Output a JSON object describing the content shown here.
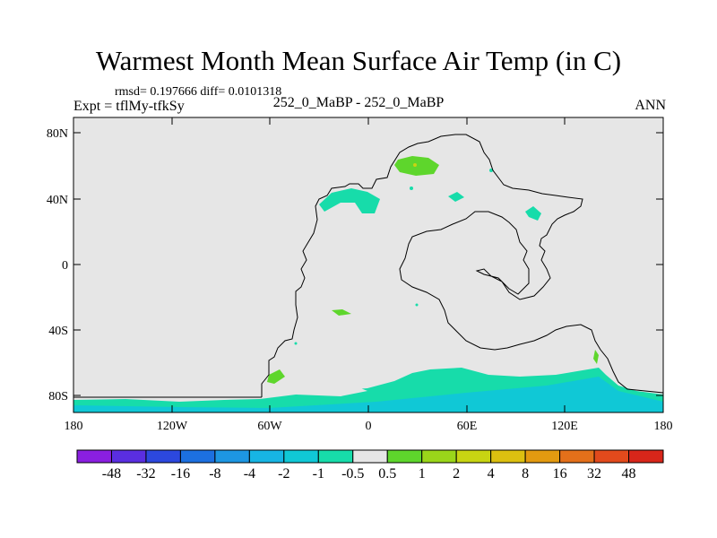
{
  "title": "Warmest Month Mean Surface Air Temp (in C)",
  "stats": "rmsd= 0.197666 diff= 0.0101318",
  "left_label": "Expt = tflMy-tfkSy",
  "center_label": "252_0_MaBP - 252_0_MaBP",
  "right_label": "ANN",
  "axes": {
    "lat_ticks": [
      "80N",
      "40N",
      "0",
      "40S",
      "80S"
    ],
    "lon_ticks": [
      "180",
      "120W",
      "60W",
      "0",
      "60E",
      "120E",
      "180"
    ]
  },
  "colorbar": {
    "labels": [
      "-48",
      "-32",
      "-16",
      "-8",
      "-4",
      "-2",
      "-1",
      "-0.5",
      "0.5",
      "1",
      "2",
      "4",
      "8",
      "16",
      "32",
      "48"
    ],
    "colors": [
      "#8a1fe0",
      "#5a2ee0",
      "#2c48de",
      "#1c70e0",
      "#1d96e2",
      "#17b5e4",
      "#10c8d6",
      "#17dcaa",
      "#e6e6e6",
      "#5ed62c",
      "#9ad61a",
      "#c8d412",
      "#dcc010",
      "#e39a10",
      "#e4701a",
      "#e24a1c",
      "#d8261a"
    ]
  }
}
